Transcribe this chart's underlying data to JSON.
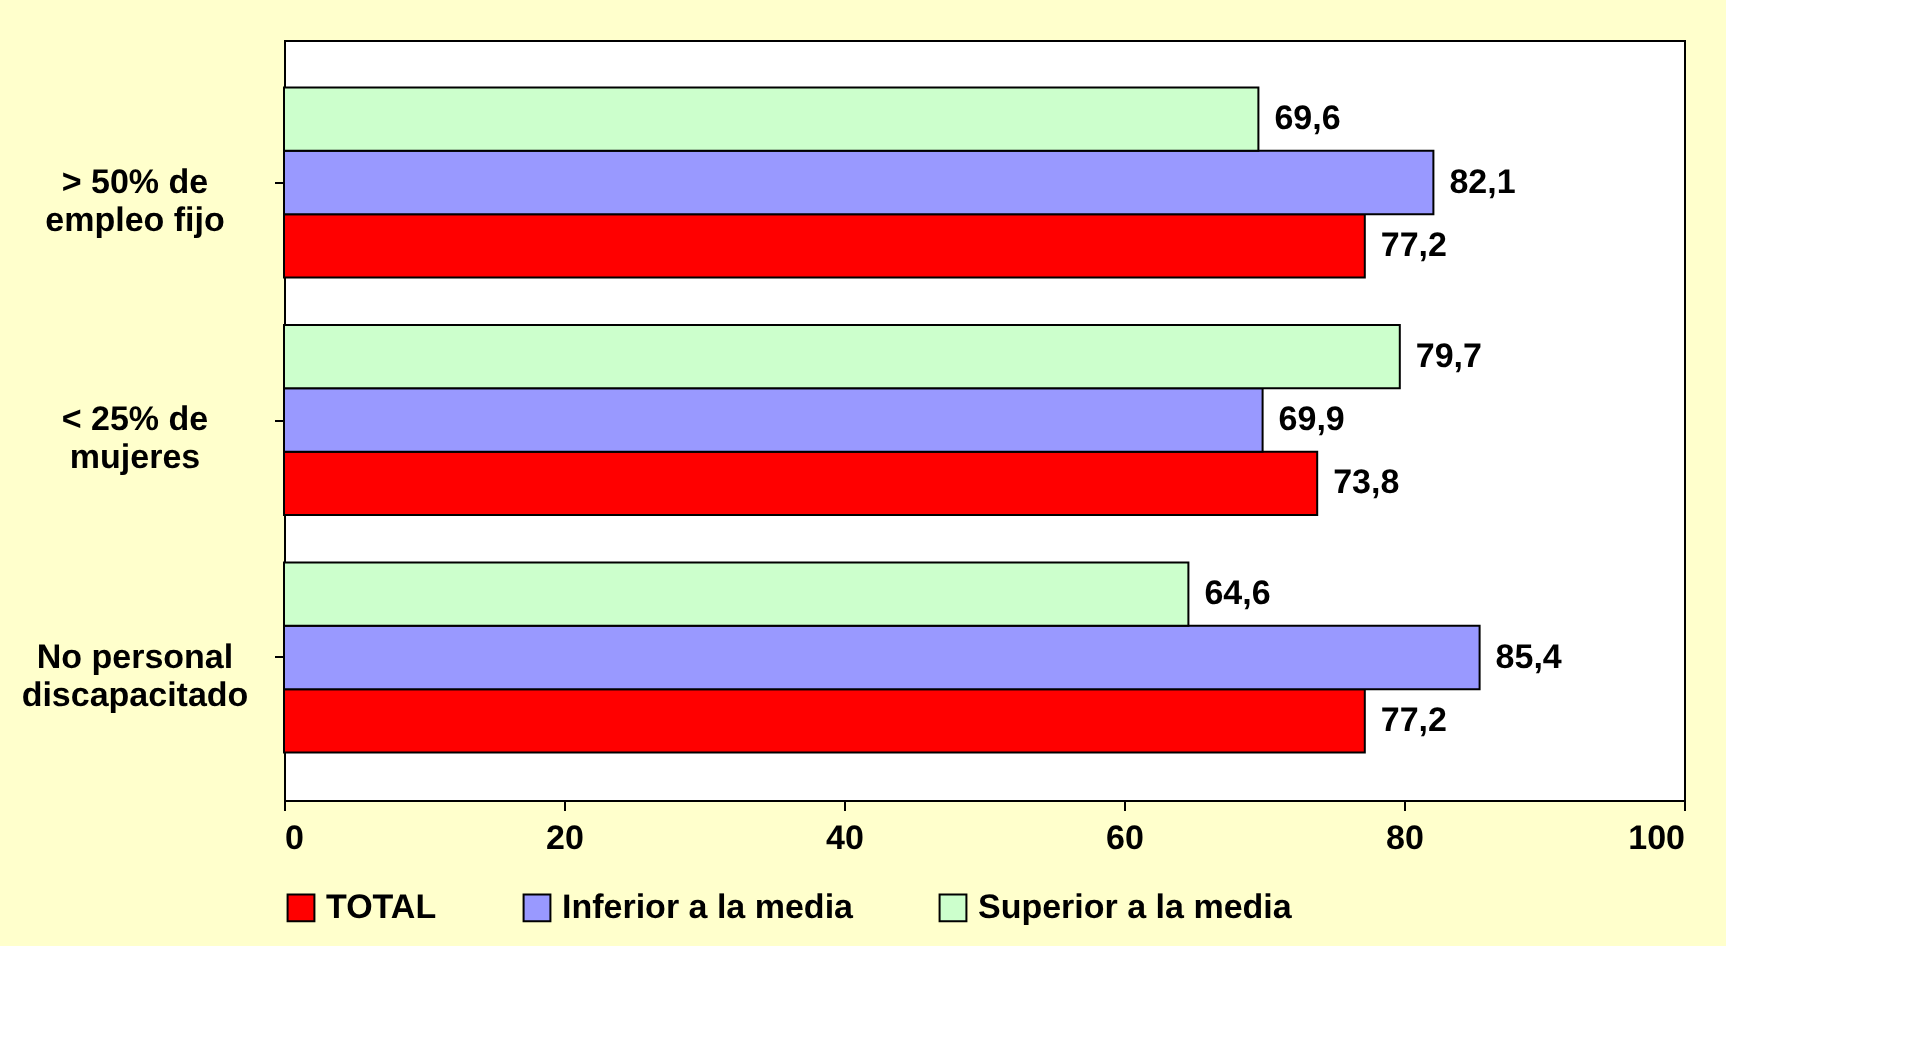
{
  "chart_data": {
    "type": "bar",
    "orientation": "horizontal",
    "categories": [
      "> 50% de\nempleo fijo",
      "< 25% de\nmujeres",
      "No personal\ndiscapacitado"
    ],
    "series": [
      {
        "name": "TOTAL",
        "color": "#ff0000",
        "values": [
          77.2,
          73.8,
          77.2
        ],
        "value_labels": [
          "77,2",
          "73,8",
          "77,2"
        ]
      },
      {
        "name": "Inferior a la media",
        "color": "#9999ff",
        "values": [
          82.1,
          69.9,
          85.4
        ],
        "value_labels": [
          "82,1",
          "69,9",
          "85,4"
        ]
      },
      {
        "name": "Superior a la media",
        "color": "#ccffcc",
        "values": [
          69.6,
          79.7,
          64.6
        ],
        "value_labels": [
          "69,6",
          "79,7",
          "64,6"
        ]
      }
    ],
    "xlim": [
      0,
      100
    ],
    "xticks": [
      0,
      20,
      40,
      60,
      80,
      100
    ],
    "grid": false,
    "legend": "bottom"
  }
}
